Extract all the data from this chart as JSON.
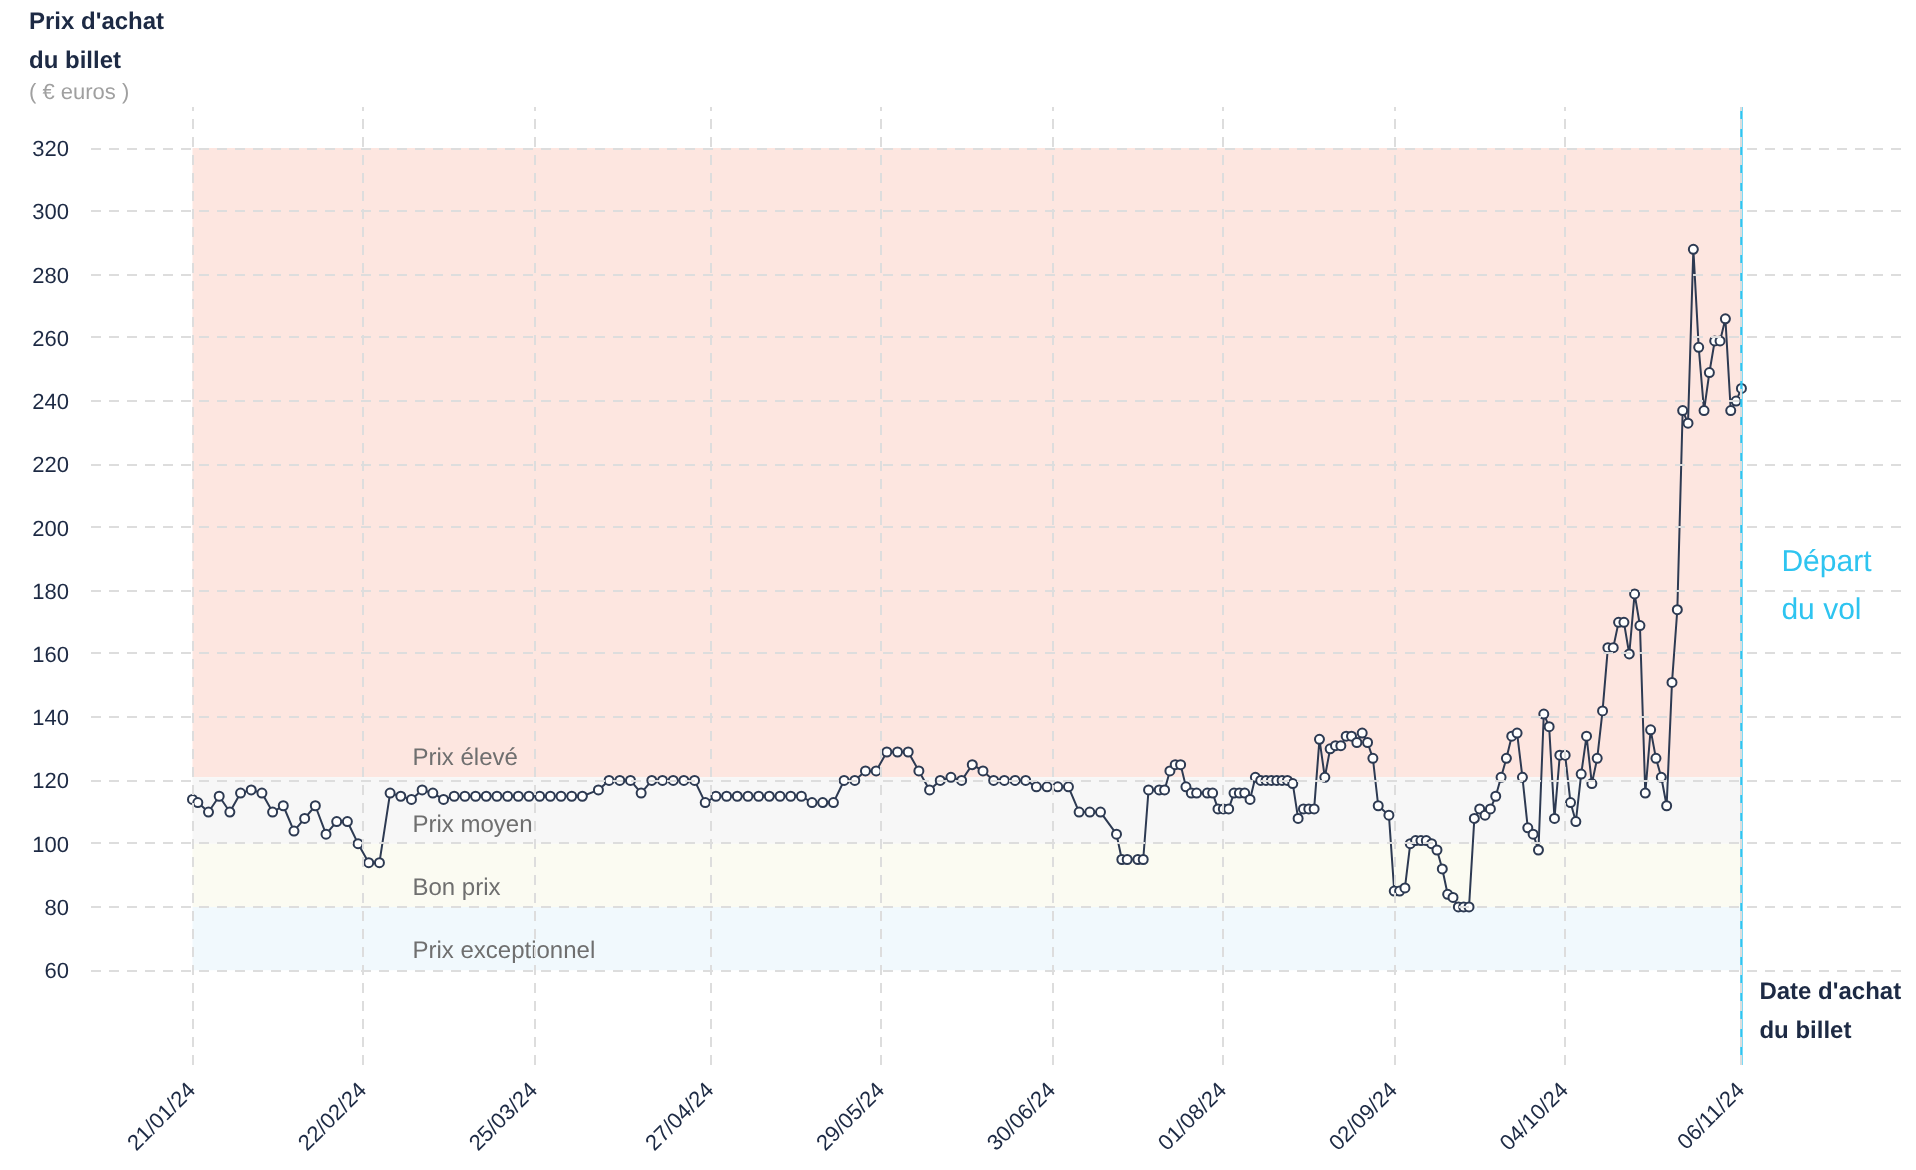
{
  "chart_data": {
    "type": "line",
    "xlabel": "Date d'achat\ndu billet",
    "ylabel": "Prix d'achat\ndu billet",
    "annotations": [
      "( € euros )"
    ],
    "x": [
      "2024-01-21",
      "2024-01-22",
      "2024-01-24",
      "2024-01-26",
      "2024-01-28",
      "2024-01-30",
      "2024-02-01",
      "2024-02-03",
      "2024-02-05",
      "2024-02-07",
      "2024-02-09",
      "2024-02-11",
      "2024-02-13",
      "2024-02-15",
      "2024-02-17",
      "2024-02-19",
      "2024-02-21",
      "2024-02-23",
      "2024-02-25",
      "2024-02-27",
      "2024-02-29",
      "2024-03-02",
      "2024-03-04",
      "2024-03-06",
      "2024-03-08",
      "2024-03-10",
      "2024-03-12",
      "2024-03-14",
      "2024-03-16",
      "2024-03-18",
      "2024-03-20",
      "2024-03-22",
      "2024-03-24",
      "2024-03-26",
      "2024-03-28",
      "2024-03-30",
      "2024-04-01",
      "2024-04-03",
      "2024-04-06",
      "2024-04-08",
      "2024-04-10",
      "2024-04-12",
      "2024-04-14",
      "2024-04-16",
      "2024-04-18",
      "2024-04-20",
      "2024-04-22",
      "2024-04-24",
      "2024-04-26",
      "2024-04-28",
      "2024-04-30",
      "2024-05-02",
      "2024-05-04",
      "2024-05-06",
      "2024-05-08",
      "2024-05-10",
      "2024-05-12",
      "2024-05-14",
      "2024-05-16",
      "2024-05-18",
      "2024-05-20",
      "2024-05-22",
      "2024-05-24",
      "2024-05-26",
      "2024-05-28",
      "2024-05-30",
      "2024-06-01",
      "2024-06-03",
      "2024-06-05",
      "2024-06-07",
      "2024-06-09",
      "2024-06-11",
      "2024-06-13",
      "2024-06-15",
      "2024-06-17",
      "2024-06-19",
      "2024-06-21",
      "2024-06-23",
      "2024-06-25",
      "2024-06-27",
      "2024-06-29",
      "2024-07-01",
      "2024-07-03",
      "2024-07-05",
      "2024-07-07",
      "2024-07-09",
      "2024-07-12",
      "2024-07-13",
      "2024-07-14",
      "2024-07-16",
      "2024-07-17",
      "2024-07-18",
      "2024-07-20",
      "2024-07-21",
      "2024-07-22",
      "2024-07-23",
      "2024-07-24",
      "2024-07-25",
      "2024-07-26",
      "2024-07-27",
      "2024-07-29",
      "2024-07-30",
      "2024-07-31",
      "2024-08-01",
      "2024-08-02",
      "2024-08-03",
      "2024-08-04",
      "2024-08-05",
      "2024-08-06",
      "2024-08-07",
      "2024-08-08",
      "2024-08-09",
      "2024-08-10",
      "2024-08-11",
      "2024-08-12",
      "2024-08-13",
      "2024-08-14",
      "2024-08-15",
      "2024-08-16",
      "2024-08-17",
      "2024-08-18",
      "2024-08-19",
      "2024-08-20",
      "2024-08-21",
      "2024-08-22",
      "2024-08-23",
      "2024-08-24",
      "2024-08-25",
      "2024-08-26",
      "2024-08-27",
      "2024-08-28",
      "2024-08-29",
      "2024-08-30",
      "2024-09-01",
      "2024-09-02",
      "2024-09-03",
      "2024-09-04",
      "2024-09-05",
      "2024-09-06",
      "2024-09-07",
      "2024-09-08",
      "2024-09-09",
      "2024-09-10",
      "2024-09-11",
      "2024-09-12",
      "2024-09-13",
      "2024-09-14",
      "2024-09-15",
      "2024-09-16",
      "2024-09-17",
      "2024-09-18",
      "2024-09-19",
      "2024-09-20",
      "2024-09-21",
      "2024-09-22",
      "2024-09-23",
      "2024-09-24",
      "2024-09-25",
      "2024-09-26",
      "2024-09-27",
      "2024-09-28",
      "2024-09-29",
      "2024-09-30",
      "2024-10-01",
      "2024-10-02",
      "2024-10-03",
      "2024-10-04",
      "2024-10-05",
      "2024-10-06",
      "2024-10-07",
      "2024-10-08",
      "2024-10-09",
      "2024-10-10",
      "2024-10-11",
      "2024-10-12",
      "2024-10-13",
      "2024-10-14",
      "2024-10-15",
      "2024-10-16",
      "2024-10-17",
      "2024-10-18",
      "2024-10-19",
      "2024-10-20",
      "2024-10-21",
      "2024-10-22",
      "2024-10-23",
      "2024-10-24",
      "2024-10-25",
      "2024-10-26",
      "2024-10-27",
      "2024-10-28",
      "2024-10-29",
      "2024-10-30",
      "2024-10-31",
      "2024-11-01",
      "2024-11-02",
      "2024-11-03",
      "2024-11-04",
      "2024-11-05",
      "2024-11-06"
    ],
    "series": [
      {
        "color": "#2d3a52",
        "values": [
          114,
          113,
          110,
          115,
          110,
          116,
          117,
          116,
          110,
          112,
          104,
          108,
          112,
          103,
          107,
          107,
          100,
          94,
          94,
          116,
          115,
          114,
          117,
          116,
          114,
          115,
          115,
          115,
          115,
          115,
          115,
          115,
          115,
          115,
          115,
          115,
          115,
          115,
          117,
          120,
          120,
          120,
          116,
          120,
          120,
          120,
          120,
          120,
          113,
          115,
          115,
          115,
          115,
          115,
          115,
          115,
          115,
          115,
          113,
          113,
          113,
          120,
          120,
          123,
          123,
          129,
          129,
          129,
          123,
          117,
          120,
          121,
          120,
          125,
          123,
          120,
          120,
          120,
          120,
          118,
          118,
          118,
          118,
          110,
          110,
          110,
          103,
          95,
          95,
          95,
          95,
          117,
          117,
          117,
          123,
          125,
          125,
          118,
          116,
          116,
          116,
          116,
          111,
          111,
          111,
          116,
          116,
          116,
          114,
          121,
          120,
          120,
          120,
          120,
          120,
          120,
          119,
          108,
          111,
          111,
          111,
          133,
          121,
          130,
          131,
          131,
          134,
          134,
          132,
          135,
          132,
          127,
          112,
          109,
          85,
          85,
          86,
          100,
          101,
          101,
          101,
          100,
          98,
          92,
          84,
          83,
          80,
          80,
          80,
          108,
          111,
          109,
          111,
          115,
          121,
          127,
          134,
          135,
          121,
          105,
          103,
          98,
          141,
          137,
          108,
          128,
          128,
          113,
          107,
          122,
          134,
          119,
          127,
          142,
          162,
          162,
          170,
          170,
          160,
          179,
          169,
          116,
          136,
          127,
          121,
          112,
          151,
          174,
          237,
          233,
          288,
          257,
          237,
          249,
          259,
          259,
          266,
          237,
          240,
          244
        ]
      }
    ],
    "marker": "circle",
    "line_style": "solid",
    "grid": true,
    "xlim": [
      "2024-01-02",
      "2024-12-07"
    ],
    "ylim": [
      30,
      333
    ],
    "xticks": [
      {
        "value": "2024-01-21",
        "label": "21/01/24"
      },
      {
        "value": "2024-02-22",
        "label": "22/02/24"
      },
      {
        "value": "2024-03-25",
        "label": "25/03/24"
      },
      {
        "value": "2024-04-27",
        "label": "27/04/24"
      },
      {
        "value": "2024-05-29",
        "label": "29/05/24"
      },
      {
        "value": "2024-06-30",
        "label": "30/06/24"
      },
      {
        "value": "2024-08-01",
        "label": "01/08/24"
      },
      {
        "value": "2024-09-02",
        "label": "02/09/24"
      },
      {
        "value": "2024-10-04",
        "label": "04/10/24"
      },
      {
        "value": "2024-11-06",
        "label": "06/11/24"
      }
    ],
    "yticks": [
      60,
      80,
      100,
      120,
      140,
      160,
      180,
      200,
      220,
      240,
      260,
      280,
      300,
      320
    ],
    "bands": [
      {
        "axis": "y",
        "from": 121,
        "to": 320,
        "label": "Prix élevé",
        "color": "#fde6e0"
      },
      {
        "axis": "y",
        "from": 100,
        "to": 121,
        "label": "Prix moyen",
        "color": "#f7f7f7"
      },
      {
        "axis": "y",
        "from": 80,
        "to": 100,
        "label": "Bon prix",
        "color": "#fbfbf2"
      },
      {
        "axis": "y",
        "from": 60,
        "to": 80,
        "label": "Prix exceptionnel",
        "color": "#f1f9fd"
      }
    ],
    "ref_lines": [
      {
        "axis": "x",
        "value": "2024-11-06",
        "label": "Départ\ndu vol",
        "color": "#2ec4f0",
        "line_style": "solid"
      }
    ]
  }
}
